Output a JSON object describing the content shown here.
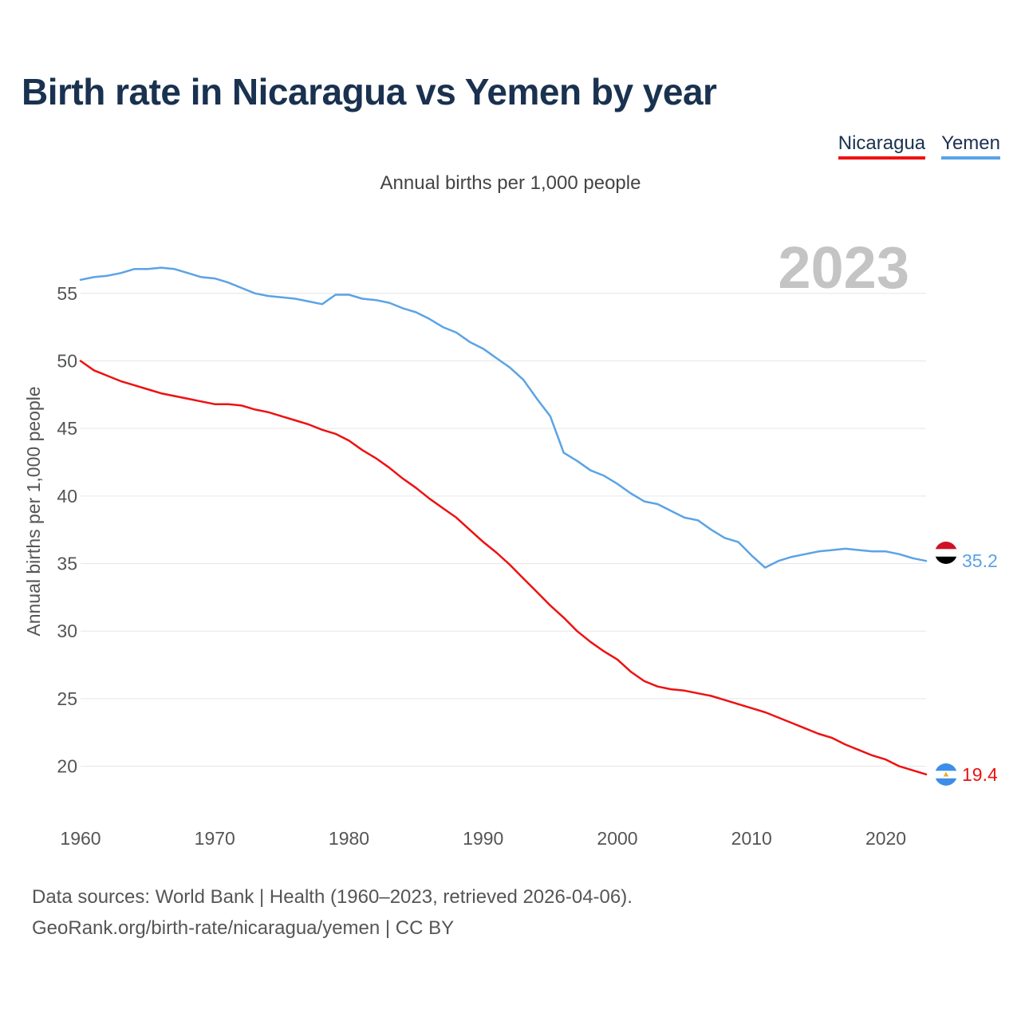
{
  "chart_data": {
    "type": "line",
    "title": "Birth rate in Nicaragua vs Yemen by year",
    "subtitle": "Annual births per 1,000 people",
    "ylabel": "Annual births per 1,000 people",
    "xlabel": "",
    "year_label": "2023",
    "xlim": [
      1960,
      2023
    ],
    "ylim": [
      16.2,
      59
    ],
    "x_ticks": [
      1960,
      1970,
      1980,
      1990,
      2000,
      2010,
      2020
    ],
    "y_ticks": [
      20,
      25,
      30,
      35,
      40,
      45,
      50,
      55
    ],
    "grid": true,
    "legend_position": "top-right",
    "x": [
      1960,
      1961,
      1962,
      1963,
      1964,
      1965,
      1966,
      1967,
      1968,
      1969,
      1970,
      1971,
      1972,
      1973,
      1974,
      1975,
      1976,
      1977,
      1978,
      1979,
      1980,
      1981,
      1982,
      1983,
      1984,
      1985,
      1986,
      1987,
      1988,
      1989,
      1990,
      1991,
      1992,
      1993,
      1994,
      1995,
      1996,
      1997,
      1998,
      1999,
      2000,
      2001,
      2002,
      2003,
      2004,
      2005,
      2006,
      2007,
      2008,
      2009,
      2010,
      2011,
      2012,
      2013,
      2014,
      2015,
      2016,
      2017,
      2018,
      2019,
      2020,
      2021,
      2022,
      2023
    ],
    "series": [
      {
        "name": "Nicaragua",
        "color": "#ee1111",
        "end_label": "19.4",
        "values": [
          50.0,
          49.3,
          48.9,
          48.5,
          48.2,
          47.9,
          47.6,
          47.4,
          47.2,
          47.0,
          46.8,
          46.8,
          46.7,
          46.4,
          46.2,
          45.9,
          45.6,
          45.3,
          44.9,
          44.6,
          44.1,
          43.4,
          42.8,
          42.1,
          41.3,
          40.6,
          39.8,
          39.1,
          38.4,
          37.5,
          36.6,
          35.8,
          34.9,
          33.9,
          32.9,
          31.9,
          31.0,
          30.0,
          29.2,
          28.5,
          27.9,
          27.0,
          26.3,
          25.9,
          25.7,
          25.6,
          25.4,
          25.2,
          24.9,
          24.6,
          24.3,
          24.0,
          23.6,
          23.2,
          22.8,
          22.4,
          22.1,
          21.6,
          21.2,
          20.8,
          20.5,
          20.0,
          19.7,
          19.4
        ]
      },
      {
        "name": "Yemen",
        "color": "#5ba3e6",
        "end_label": "35.2",
        "values": [
          56.0,
          56.2,
          56.3,
          56.5,
          56.8,
          56.8,
          56.9,
          56.8,
          56.5,
          56.2,
          56.1,
          55.8,
          55.4,
          55.0,
          54.8,
          54.7,
          54.6,
          54.4,
          54.2,
          54.9,
          54.9,
          54.6,
          54.5,
          54.3,
          53.9,
          53.6,
          53.1,
          52.5,
          52.1,
          51.4,
          50.9,
          50.2,
          49.5,
          48.6,
          47.2,
          45.9,
          43.2,
          42.6,
          41.9,
          41.5,
          40.9,
          40.2,
          39.6,
          39.4,
          38.9,
          38.4,
          38.2,
          37.5,
          36.9,
          36.6,
          35.6,
          34.7,
          35.2,
          35.5,
          35.7,
          35.9,
          36.0,
          36.1,
          36.0,
          35.9,
          35.9,
          35.7,
          35.4,
          35.2
        ]
      }
    ]
  },
  "legend": {
    "nicaragua": "Nicaragua",
    "yemen": "Yemen"
  },
  "flags": {
    "nicaragua": "nicaragua-flag-icon",
    "yemen": "yemen-flag-icon"
  },
  "footer": {
    "line1": "Data sources: World Bank | Health (1960–2023, retrieved 2026-04-06).",
    "line2": "GeoRank.org/birth-rate/nicaragua/yemen | CC BY"
  }
}
